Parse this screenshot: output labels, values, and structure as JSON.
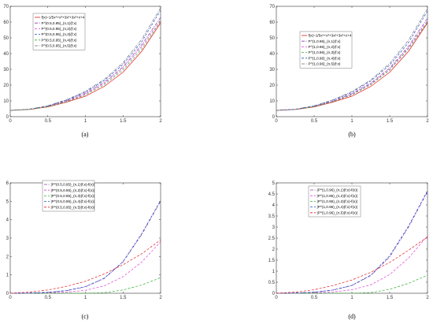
{
  "colors": {
    "red": "#e41a1c",
    "purple": "#8a3cb0",
    "blue": "#2050c8",
    "magenta": "#e040d8",
    "green": "#30b030",
    "gray": "#707070"
  },
  "chart_data": [
    {
      "type": "line",
      "panel": "(a)",
      "xlim": [
        0,
        2
      ],
      "ylim": [
        0,
        70
      ],
      "x_ticks": [
        "0",
        "0.5",
        "1",
        "1.5",
        "2"
      ],
      "y_ticks": [
        "0",
        "10",
        "20",
        "30",
        "40",
        "50",
        "60",
        "70"
      ],
      "legend_position": "top-left",
      "series": [
        {
          "name": "f(x)=1/5x⁴+x³+3x²+3x²+x+4",
          "color": "red",
          "dash": "solid",
          "x": [
            0,
            0.25,
            0.5,
            0.75,
            1,
            1.25,
            1.5,
            1.75,
            2
          ],
          "y": [
            4,
            4.52,
            6.15,
            9.24,
            13.0,
            19.2,
            28.2,
            41.5,
            59.5
          ]
        },
        {
          "name": "P^(0.5,0.95)_(n,1)(f;x)",
          "color": "purple",
          "dash": "dashdot",
          "x": [
            0,
            0.25,
            0.5,
            0.75,
            1,
            1.25,
            1.5,
            1.75,
            2
          ],
          "y": [
            4,
            4.65,
            6.6,
            10.1,
            14.9,
            21.8,
            31.6,
            45.7,
            63.0
          ]
        },
        {
          "name": "P^(0.5,0.95)_(n,2)(f;x)",
          "color": "magenta",
          "dash": "dashed",
          "x": [
            0,
            0.25,
            0.5,
            0.75,
            1,
            1.25,
            1.5,
            1.75,
            2
          ],
          "y": [
            4,
            4.6,
            6.45,
            9.8,
            14.4,
            21.1,
            30.8,
            44.5,
            61.5
          ]
        },
        {
          "name": "P^(0.5,0.95)_(n,3)(f;x)",
          "color": "blue",
          "dash": "dashed",
          "x": [
            0,
            0.25,
            0.5,
            0.75,
            1,
            1.25,
            1.5,
            1.75,
            2
          ],
          "y": [
            4,
            4.7,
            6.8,
            10.5,
            15.6,
            22.9,
            33.1,
            47.6,
            67.5
          ]
        },
        {
          "name": "P^(0.5,0.95)_(n,4)(f;x)",
          "color": "green",
          "dash": "dashed",
          "x": [
            0,
            0.25,
            0.5,
            0.75,
            1,
            1.25,
            1.5,
            1.75,
            2
          ],
          "y": [
            4,
            4.55,
            6.3,
            9.5,
            13.8,
            20.3,
            29.6,
            43.0,
            60.5
          ]
        },
        {
          "name": "P^(0.5,0.95)_(n,5)(f;x)",
          "color": "gray",
          "dash": "dashdot",
          "x": [
            0,
            0.25,
            0.5,
            0.75,
            1,
            1.25,
            1.5,
            1.75,
            2
          ],
          "y": [
            4,
            4.75,
            6.95,
            10.8,
            16.1,
            23.6,
            34.2,
            49.2,
            69.0
          ]
        }
      ]
    },
    {
      "type": "line",
      "panel": "(b)",
      "xlim": [
        0,
        2
      ],
      "ylim": [
        0,
        70
      ],
      "x_ticks": [
        "0",
        "0.5",
        "1",
        "1.5",
        "2"
      ],
      "y_ticks": [
        "0",
        "10",
        "20",
        "30",
        "40",
        "50",
        "60",
        "70"
      ],
      "legend_position": "top-left",
      "series": [
        {
          "name": "f(x)=1/5x⁴+x³+3x²+3x²+x+4",
          "color": "red",
          "dash": "solid",
          "x": [
            0,
            0.25,
            0.5,
            0.75,
            1,
            1.25,
            1.5,
            1.75,
            2
          ],
          "y": [
            4,
            4.52,
            6.15,
            9.24,
            13.0,
            19.2,
            28.2,
            41.5,
            59.5
          ]
        },
        {
          "name": "P^(1,0.96)_(n,1)(f;x)",
          "color": "purple",
          "dash": "dashdot",
          "x": [
            0,
            0.25,
            0.5,
            0.75,
            1,
            1.25,
            1.5,
            1.75,
            2
          ],
          "y": [
            4,
            4.6,
            6.5,
            9.9,
            14.6,
            21.3,
            30.9,
            44.7,
            62.5
          ]
        },
        {
          "name": "P^(1,0.96)_(n,2)(f;x)",
          "color": "magenta",
          "dash": "dashed",
          "x": [
            0,
            0.25,
            0.5,
            0.75,
            1,
            1.25,
            1.5,
            1.75,
            2
          ],
          "y": [
            4,
            4.58,
            6.4,
            9.7,
            14.2,
            20.8,
            30.2,
            43.8,
            61.0
          ]
        },
        {
          "name": "P^(1,0.96)_(n,3)(f;x)",
          "color": "green",
          "dash": "dashed",
          "x": [
            0,
            0.25,
            0.5,
            0.75,
            1,
            1.25,
            1.5,
            1.75,
            2
          ],
          "y": [
            4,
            4.55,
            6.3,
            9.5,
            13.8,
            20.3,
            29.6,
            43.0,
            60.0
          ]
        },
        {
          "name": "P^(1,0.96)_(n,4)(f;x)",
          "color": "blue",
          "dash": "dashed",
          "x": [
            0,
            0.25,
            0.5,
            0.75,
            1,
            1.25,
            1.5,
            1.75,
            2
          ],
          "y": [
            4,
            4.68,
            6.75,
            10.4,
            15.4,
            22.6,
            32.7,
            47.0,
            67.0
          ]
        },
        {
          "name": "P^(1,0.96)_(n,5)(f;x)",
          "color": "gray",
          "dash": "dashdot",
          "x": [
            0,
            0.25,
            0.5,
            0.75,
            1,
            1.25,
            1.5,
            1.75,
            2
          ],
          "y": [
            4,
            4.72,
            6.9,
            10.7,
            15.9,
            23.3,
            33.8,
            48.6,
            68.5
          ]
        }
      ]
    },
    {
      "type": "line",
      "panel": "(c)",
      "xlim": [
        0,
        2
      ],
      "ylim": [
        0,
        6
      ],
      "x_ticks": [
        "0",
        "0.5",
        "1",
        "1.5",
        "2"
      ],
      "y_ticks": [
        "0",
        "1",
        "2",
        "3",
        "4",
        "5",
        "6"
      ],
      "legend_position": "top-left",
      "series": [
        {
          "name": "|P^(0.5,0.95)_(n,1)(f;x)-f(x)|",
          "color": "purple",
          "dash": "dashdot",
          "x": [
            0,
            0.25,
            0.5,
            0.75,
            1,
            1.25,
            1.5,
            1.75,
            2
          ],
          "y": [
            0,
            0.01,
            0.05,
            0.14,
            0.35,
            0.8,
            1.7,
            3.2,
            5.0
          ]
        },
        {
          "name": "|P^(0.5,0.95)_(n,2)(f;x)-f(x)|",
          "color": "magenta",
          "dash": "dashed",
          "x": [
            0,
            0.25,
            0.5,
            0.75,
            1,
            1.25,
            1.5,
            1.75,
            2
          ],
          "y": [
            0,
            0.0,
            0.02,
            0.06,
            0.16,
            0.4,
            0.9,
            1.7,
            2.8
          ]
        },
        {
          "name": "|P^(0.5,0.95)_(n,3)(f;x)-f(x)|",
          "color": "green",
          "dash": "dashed",
          "x": [
            0,
            0.25,
            0.5,
            0.75,
            1,
            1.25,
            1.5,
            1.75,
            2
          ],
          "y": [
            0,
            0,
            0,
            0,
            0,
            0.03,
            0.18,
            0.45,
            0.85
          ]
        },
        {
          "name": "|P^(0.5,0.95)_(n,4)(f;x)-f(x)|",
          "color": "blue",
          "dash": "dashed",
          "x": [
            0,
            0.25,
            0.5,
            0.75,
            1,
            1.25,
            1.5,
            1.75,
            2
          ],
          "y": [
            0,
            0.01,
            0.05,
            0.15,
            0.36,
            0.82,
            1.72,
            3.25,
            5.05
          ]
        },
        {
          "name": "|P^(0.5,0.95)_(n,5)(f;x)-f(x)|",
          "color": "red",
          "dash": "dashed",
          "x": [
            0,
            0.25,
            0.5,
            0.75,
            1,
            1.25,
            1.5,
            1.75,
            2
          ],
          "y": [
            0,
            0.06,
            0.18,
            0.38,
            0.65,
            1.05,
            1.55,
            2.15,
            2.9
          ]
        }
      ]
    },
    {
      "type": "line",
      "panel": "(d)",
      "xlim": [
        0,
        2
      ],
      "ylim": [
        0,
        5
      ],
      "x_ticks": [
        "0",
        "0.5",
        "1",
        "1.5",
        "2"
      ],
      "y_ticks": [
        "0",
        "0.5",
        "1",
        "1.5",
        "2",
        "2.5",
        "3",
        "3.5",
        "4",
        "4.5",
        "5"
      ],
      "legend_position": "top-left",
      "series": [
        {
          "name": "|P^(1,0.96)_(n,1)(f;x)-f(x)|",
          "color": "purple",
          "dash": "dashdot",
          "x": [
            0,
            0.25,
            0.5,
            0.75,
            1,
            1.25,
            1.5,
            1.75,
            2
          ],
          "y": [
            0,
            0.01,
            0.05,
            0.14,
            0.35,
            0.8,
            1.65,
            3.0,
            4.6
          ]
        },
        {
          "name": "|P^(1,0.96)_(n,2)(f;x)-f(x)|",
          "color": "magenta",
          "dash": "dashed",
          "x": [
            0,
            0.25,
            0.5,
            0.75,
            1,
            1.25,
            1.5,
            1.75,
            2
          ],
          "y": [
            0,
            0.0,
            0.02,
            0.06,
            0.16,
            0.38,
            0.85,
            1.6,
            2.6
          ]
        },
        {
          "name": "|P^(1,0.96)_(n,3)(f;x)-f(x)|",
          "color": "green",
          "dash": "dashed",
          "x": [
            0,
            0.25,
            0.5,
            0.75,
            1,
            1.25,
            1.5,
            1.75,
            2
          ],
          "y": [
            0,
            0,
            0,
            0,
            0,
            0.03,
            0.18,
            0.45,
            0.82
          ]
        },
        {
          "name": "|P^(1,0.96)_(n,4)(f;x)-f(x)|",
          "color": "blue",
          "dash": "dashed",
          "x": [
            0,
            0.25,
            0.5,
            0.75,
            1,
            1.25,
            1.5,
            1.75,
            2
          ],
          "y": [
            0,
            0.01,
            0.05,
            0.15,
            0.36,
            0.82,
            1.7,
            3.05,
            4.65
          ]
        },
        {
          "name": "|P^(1,0.96)_(n,5)(f;x)-f(x)|",
          "color": "red",
          "dash": "dashed",
          "x": [
            0,
            0.25,
            0.5,
            0.75,
            1,
            1.25,
            1.5,
            1.75,
            2
          ],
          "y": [
            0,
            0.05,
            0.16,
            0.35,
            0.6,
            0.95,
            1.4,
            1.95,
            2.55
          ]
        }
      ]
    }
  ]
}
